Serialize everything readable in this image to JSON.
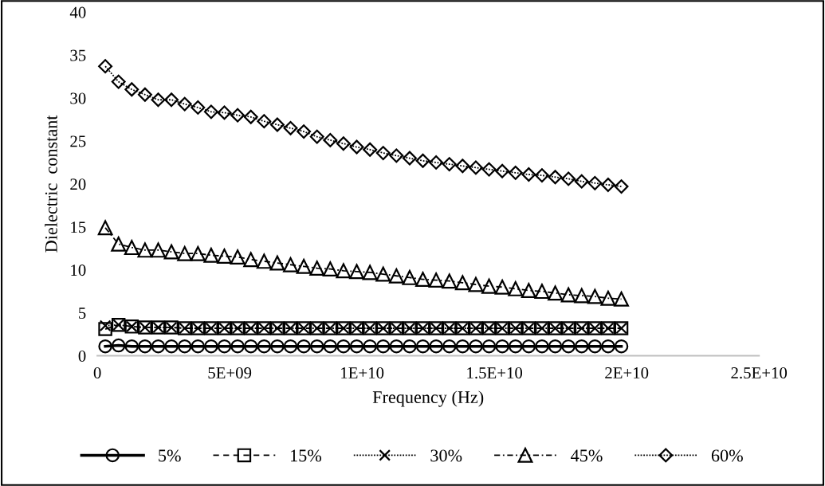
{
  "chart_data": {
    "type": "line",
    "xlabel": "Frequency (Hz)",
    "ylabel": "Dielectric  constant",
    "x": [
      300000000.0,
      800000000.0,
      1300000000.0,
      1800000000.0,
      2300000000.0,
      2800000000.0,
      3300000000.0,
      3800000000.0,
      4300000000.0,
      4800000000.0,
      5300000000.0,
      5800000000.0,
      6300000000.0,
      6800000000.0,
      7300000000.0,
      7800000000.0,
      8300000000.0,
      8800000000.0,
      9300000000.0,
      9800000000.0,
      10300000000.0,
      10800000000.0,
      11300000000.0,
      11800000000.0,
      12300000000.0,
      12800000000.0,
      13300000000.0,
      13800000000.0,
      14300000000.0,
      14800000000.0,
      15300000000.0,
      15800000000.0,
      16300000000.0,
      16800000000.0,
      17300000000.0,
      17800000000.0,
      18300000000.0,
      18800000000.0,
      19300000000.0,
      19800000000.0
    ],
    "series": [
      {
        "name": "5%",
        "color": "#000000",
        "marker": "circle",
        "line_style": "solid",
        "values": [
          1.1,
          1.2,
          1.1,
          1.1,
          1.1,
          1.1,
          1.1,
          1.1,
          1.1,
          1.1,
          1.1,
          1.1,
          1.1,
          1.1,
          1.1,
          1.1,
          1.1,
          1.1,
          1.1,
          1.1,
          1.1,
          1.1,
          1.1,
          1.1,
          1.1,
          1.1,
          1.1,
          1.1,
          1.1,
          1.1,
          1.1,
          1.1,
          1.1,
          1.1,
          1.1,
          1.1,
          1.1,
          1.1,
          1.1,
          1.1
        ]
      },
      {
        "name": "15%",
        "color": "#000000",
        "marker": "square",
        "line_style": "dashed",
        "values": [
          3.1,
          3.6,
          3.4,
          3.3,
          3.3,
          3.3,
          3.2,
          3.2,
          3.2,
          3.2,
          3.2,
          3.2,
          3.2,
          3.2,
          3.2,
          3.2,
          3.2,
          3.2,
          3.2,
          3.2,
          3.2,
          3.2,
          3.2,
          3.2,
          3.2,
          3.2,
          3.2,
          3.2,
          3.2,
          3.2,
          3.2,
          3.2,
          3.2,
          3.2,
          3.2,
          3.2,
          3.2,
          3.2,
          3.2,
          3.2
        ]
      },
      {
        "name": "30%",
        "color": "#000000",
        "marker": "cross",
        "line_style": "dotted",
        "values": [
          3.5,
          3.6,
          3.4,
          3.3,
          3.3,
          3.3,
          3.2,
          3.2,
          3.2,
          3.2,
          3.2,
          3.2,
          3.2,
          3.2,
          3.2,
          3.2,
          3.2,
          3.2,
          3.2,
          3.2,
          3.2,
          3.2,
          3.2,
          3.2,
          3.2,
          3.2,
          3.2,
          3.2,
          3.2,
          3.2,
          3.2,
          3.2,
          3.2,
          3.2,
          3.2,
          3.2,
          3.2,
          3.2,
          3.2,
          3.2
        ]
      },
      {
        "name": "45%",
        "color": "#000000",
        "marker": "triangle",
        "line_style": "dashdot",
        "values": [
          14.9,
          13.0,
          12.6,
          12.3,
          12.3,
          12.1,
          11.9,
          11.9,
          11.7,
          11.6,
          11.5,
          11.2,
          11.0,
          10.8,
          10.6,
          10.4,
          10.2,
          10.1,
          9.9,
          9.8,
          9.7,
          9.5,
          9.3,
          9.1,
          8.9,
          8.8,
          8.7,
          8.5,
          8.3,
          8.1,
          8.0,
          7.8,
          7.6,
          7.5,
          7.3,
          7.1,
          7.0,
          6.9,
          6.7,
          6.6
        ]
      },
      {
        "name": "60%",
        "color": "#000000",
        "marker": "diamond",
        "line_style": "dotted",
        "values": [
          33.7,
          31.9,
          31.0,
          30.4,
          29.8,
          29.8,
          29.3,
          28.9,
          28.4,
          28.3,
          28.0,
          27.8,
          27.3,
          26.9,
          26.5,
          26.1,
          25.5,
          25.1,
          24.7,
          24.3,
          24.0,
          23.6,
          23.3,
          23.0,
          22.7,
          22.5,
          22.3,
          22.1,
          21.9,
          21.7,
          21.5,
          21.3,
          21.1,
          21.0,
          20.8,
          20.6,
          20.3,
          20.1,
          19.9,
          19.7
        ]
      }
    ],
    "xlim": [
      0,
      25000000000.0
    ],
    "xticks": [
      0,
      {
        "value": 5000000000.0,
        "label": "5E+09"
      },
      {
        "value": 10000000000.0,
        "label": "1E+10"
      },
      {
        "value": 15000000000.0,
        "label": "1.5E+10"
      },
      {
        "value": 20000000000.0,
        "label": "2E+10"
      },
      {
        "value": 25000000000.0,
        "label": "2.5E+10"
      }
    ],
    "ylim": [
      0,
      40
    ],
    "yticks": [
      0,
      5,
      10,
      15,
      20,
      25,
      30,
      35,
      40
    ],
    "grid": false,
    "legend": "bottom"
  }
}
